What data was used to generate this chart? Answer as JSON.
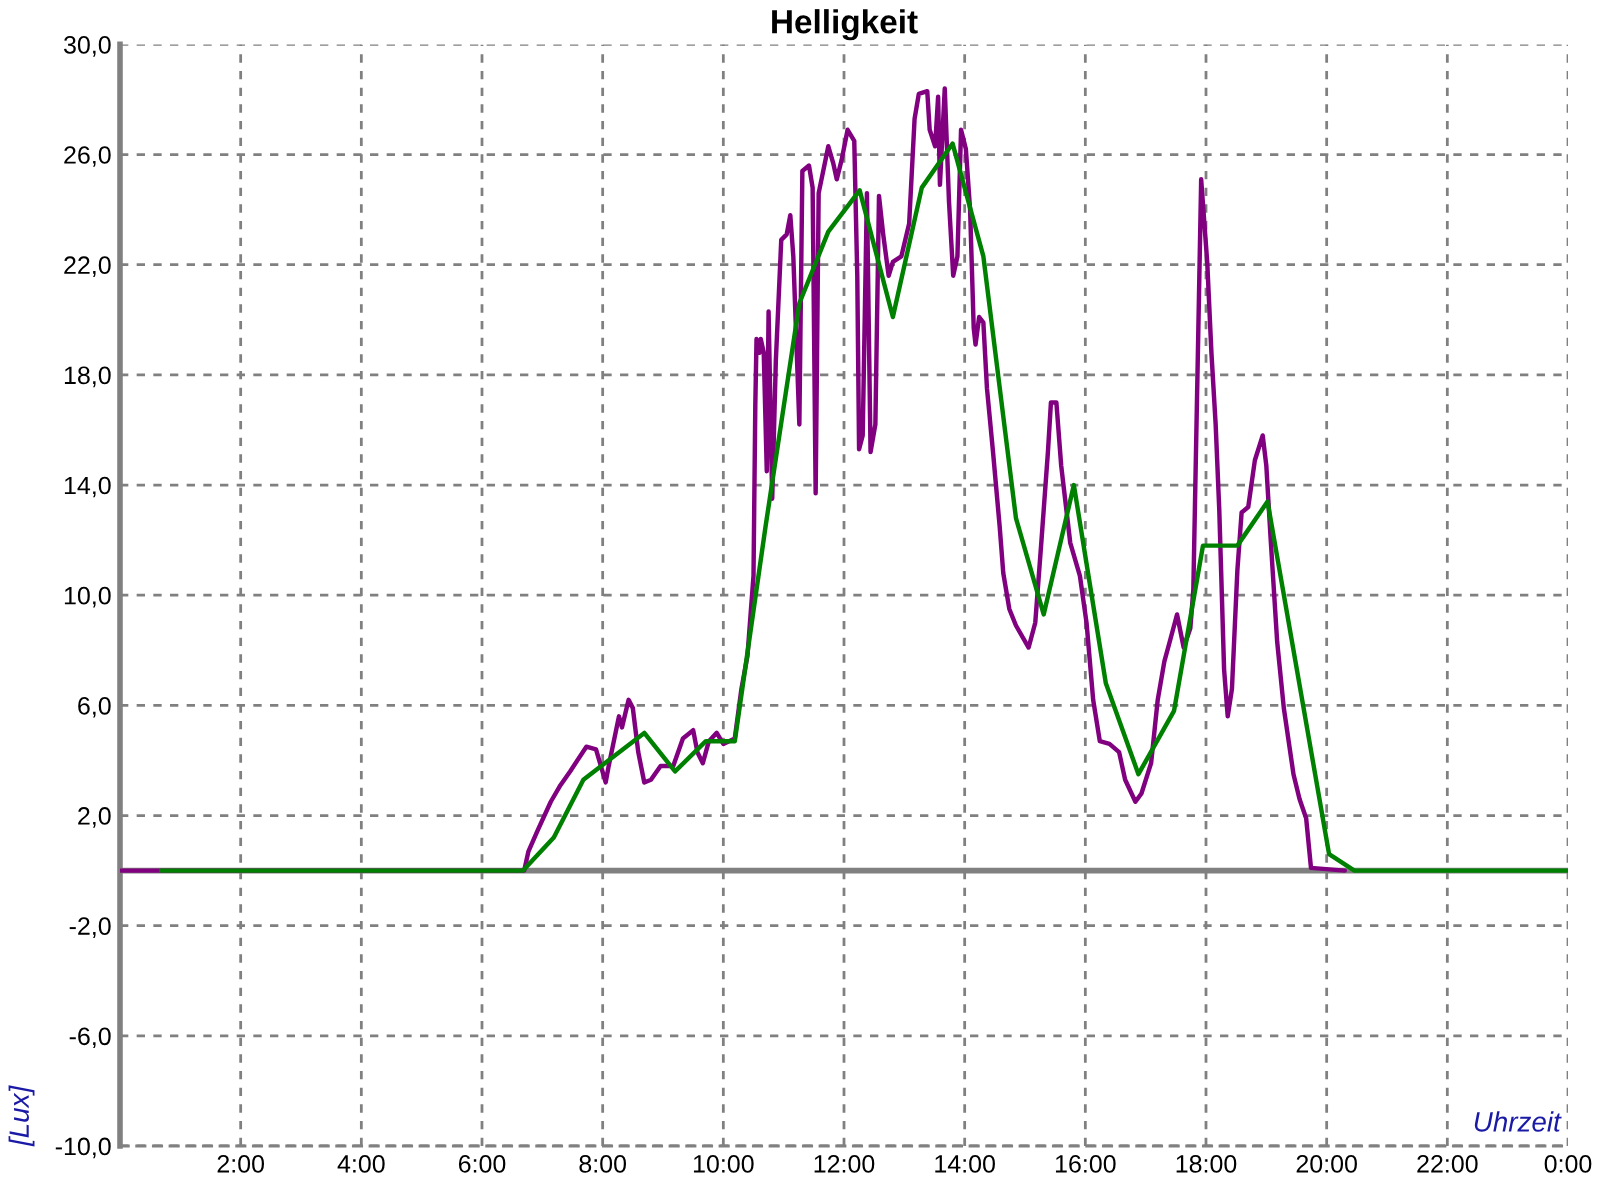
{
  "chart_data": {
    "type": "line",
    "title": "Helligkeit",
    "xlabel": "Uhrzeit",
    "ylabel": "[Lux]",
    "xlim": [
      0,
      24
    ],
    "xticks": [
      {
        "value": 0,
        "label": null
      },
      {
        "value": 2,
        "label": "2:00"
      },
      {
        "value": 4,
        "label": "4:00"
      },
      {
        "value": 6,
        "label": "6:00"
      },
      {
        "value": 8,
        "label": "8:00"
      },
      {
        "value": 10,
        "label": "10:00"
      },
      {
        "value": 12,
        "label": "12:00"
      },
      {
        "value": 14,
        "label": "14:00"
      },
      {
        "value": 16,
        "label": "16:00"
      },
      {
        "value": 18,
        "label": "18:00"
      },
      {
        "value": 20,
        "label": "20:00"
      },
      {
        "value": 22,
        "label": "22:00"
      },
      {
        "value": 24,
        "label": "0:00"
      }
    ],
    "ylim": [
      -10,
      30
    ],
    "yticks": [
      {
        "value": -10,
        "label": "-10,0"
      },
      {
        "value": -6,
        "label": "-6,0"
      },
      {
        "value": -2,
        "label": "-2,0"
      },
      {
        "value": 2,
        "label": "2,0"
      },
      {
        "value": 6,
        "label": "6,0"
      },
      {
        "value": 10,
        "label": "10,0"
      },
      {
        "value": 14,
        "label": "14,0"
      },
      {
        "value": 18,
        "label": "18,0"
      },
      {
        "value": 22,
        "label": "22,0"
      },
      {
        "value": 26,
        "label": "26,0"
      },
      {
        "value": 30,
        "label": "30,0"
      }
    ],
    "grid": true,
    "ref_lines": [
      {
        "axis": "y",
        "value": 0,
        "color": "#808080"
      }
    ],
    "series": [
      {
        "color": "#800080",
        "x": [
          0,
          6.7,
          6.77,
          6.93,
          7.14,
          7.3,
          7.46,
          7.73,
          7.89,
          8.05,
          8.1,
          8.27,
          8.32,
          8.43,
          8.5,
          8.59,
          8.69,
          8.8,
          8.96,
          9.17,
          9.33,
          9.5,
          9.57,
          9.66,
          9.76,
          9.89,
          10.0,
          10.19,
          10.3,
          10.4,
          10.5,
          10.53,
          10.55,
          10.6,
          10.62,
          10.67,
          10.72,
          10.75,
          10.81,
          10.87,
          10.96,
          11.05,
          11.11,
          11.16,
          11.26,
          11.31,
          11.42,
          11.48,
          11.53,
          11.58,
          11.74,
          11.82,
          11.88,
          11.96,
          12.06,
          12.17,
          12.22,
          12.25,
          12.31,
          12.38,
          12.44,
          12.52,
          12.58,
          12.65,
          12.74,
          12.81,
          12.95,
          13.08,
          13.17,
          13.24,
          13.38,
          13.42,
          13.51,
          13.56,
          13.59,
          13.67,
          13.74,
          13.81,
          13.88,
          13.94,
          14.02,
          14.09,
          14.15,
          14.18,
          14.24,
          14.31,
          14.37,
          14.47,
          14.58,
          14.64,
          14.74,
          14.85,
          15.06,
          15.17,
          15.27,
          15.38,
          15.43,
          15.52,
          15.6,
          15.75,
          15.91,
          16.02,
          16.13,
          16.24,
          16.4,
          16.56,
          16.66,
          16.83,
          16.93,
          17.09,
          17.2,
          17.31,
          17.41,
          17.52,
          17.63,
          17.74,
          17.79,
          17.87,
          17.92,
          18.02,
          18.09,
          18.16,
          18.22,
          18.3,
          18.36,
          18.43,
          18.52,
          18.59,
          18.7,
          18.81,
          18.94,
          19.0,
          19.07,
          19.18,
          19.29,
          19.45,
          19.55,
          19.66,
          19.74,
          20.3
        ],
        "values": [
          0,
          0,
          0.7,
          1.5,
          2.5,
          3.1,
          3.6,
          4.5,
          4.4,
          3.2,
          3.8,
          5.6,
          5.2,
          6.2,
          5.9,
          4.3,
          3.2,
          3.3,
          3.8,
          3.8,
          4.8,
          5.1,
          4.3,
          3.9,
          4.7,
          5.0,
          4.6,
          4.8,
          6.6,
          7.8,
          10.7,
          16.9,
          19.3,
          18.8,
          19.3,
          18.8,
          14.5,
          20.3,
          13.5,
          18.5,
          22.9,
          23.1,
          23.8,
          22.3,
          16.2,
          25.4,
          25.6,
          24.8,
          13.7,
          24.6,
          26.3,
          25.7,
          25.1,
          25.8,
          26.9,
          26.5,
          21.6,
          15.3,
          15.8,
          24.6,
          15.2,
          16.2,
          24.5,
          23.1,
          21.6,
          22.1,
          22.3,
          23.5,
          27.3,
          28.2,
          28.3,
          26.9,
          26.3,
          28.1,
          24.9,
          28.4,
          24.3,
          21.6,
          22.3,
          26.9,
          26.2,
          24.0,
          19.7,
          19.1,
          20.1,
          19.9,
          17.5,
          15.2,
          12.5,
          10.8,
          9.5,
          8.9,
          8.1,
          9.0,
          11.9,
          15.2,
          17.0,
          17.0,
          14.7,
          11.9,
          10.7,
          9.0,
          6.2,
          4.7,
          4.6,
          4.3,
          3.3,
          2.5,
          2.8,
          3.9,
          6.2,
          7.6,
          8.4,
          9.3,
          8.1,
          8.8,
          10.2,
          19.3,
          25.1,
          22.1,
          18.8,
          16.2,
          13.1,
          7.3,
          5.6,
          6.6,
          10.9,
          13.0,
          13.2,
          14.9,
          15.8,
          14.7,
          12.1,
          8.3,
          5.9,
          3.5,
          2.6,
          1.9,
          0.1,
          0
        ]
      },
      {
        "color": "#008000",
        "x": [
          0.68,
          6.68,
          7.19,
          7.68,
          8.69,
          9.2,
          9.71,
          10.19,
          10.7,
          11.26,
          11.74,
          12.26,
          12.81,
          13.29,
          13.8,
          14.31,
          14.85,
          15.31,
          15.81,
          16.34,
          16.88,
          17.47,
          17.95,
          18.52,
          19.02,
          20.04,
          20.46,
          24
        ],
        "values": [
          0,
          0,
          1.2,
          3.3,
          5.0,
          3.6,
          4.7,
          4.7,
          12.5,
          20.6,
          23.2,
          24.7,
          20.1,
          24.8,
          26.4,
          22.3,
          12.8,
          9.3,
          14.0,
          6.8,
          3.5,
          5.8,
          11.8,
          11.8,
          13.4,
          0.6,
          0,
          0
        ]
      }
    ]
  }
}
